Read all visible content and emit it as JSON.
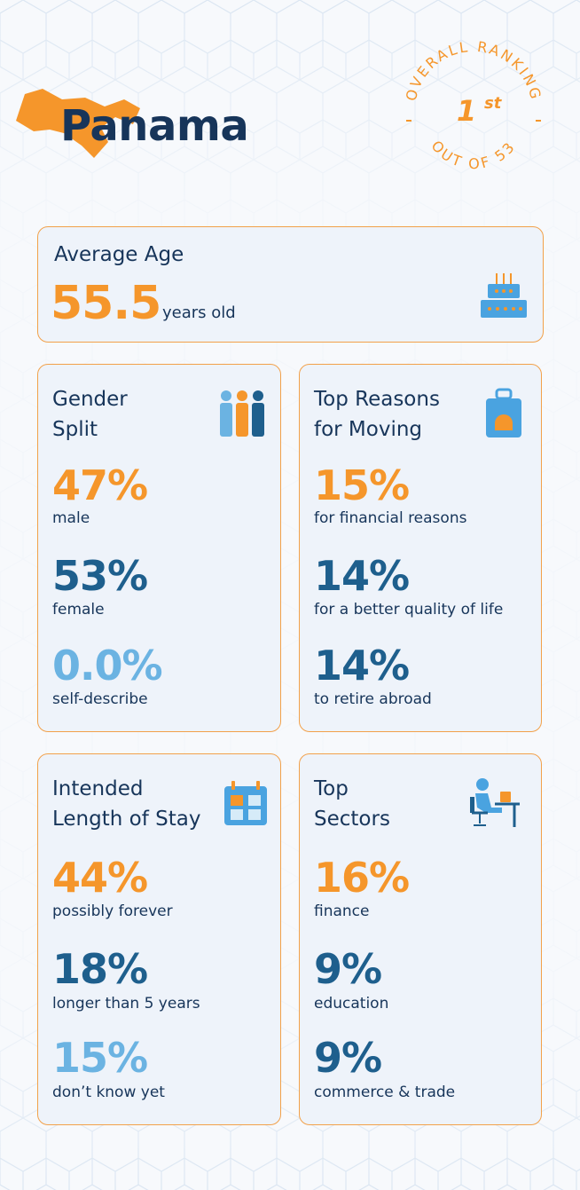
{
  "header": {
    "country": "Panama",
    "badge": {
      "ranking_label": "OVERALL RANKING",
      "rank": "1",
      "rank_suffix": "st",
      "out_of_label": "OUT OF 53"
    }
  },
  "average_age": {
    "title": "Average Age",
    "value": "55.5",
    "unit": "years old",
    "icon": "birthday-cake-icon"
  },
  "gender_split": {
    "title_line1": "Gender",
    "title_line2": "Split",
    "icon": "people-group-icon",
    "stats": [
      {
        "value": "47%",
        "label": "male"
      },
      {
        "value": "53%",
        "label": "female"
      },
      {
        "value": "0.0%",
        "label": "self-describe"
      }
    ]
  },
  "reasons": {
    "title_line1": "Top Reasons",
    "title_line2": "for Moving",
    "icon": "suitcase-icon",
    "stats": [
      {
        "value": "15%",
        "label": "for financial reasons"
      },
      {
        "value": "14%",
        "label": "for a better quality of life"
      },
      {
        "value": "14%",
        "label": "to retire abroad"
      }
    ]
  },
  "stay": {
    "title_line1": "Intended",
    "title_line2": "Length of Stay",
    "icon": "calendar-icon",
    "stats": [
      {
        "value": "44%",
        "label": "possibly forever"
      },
      {
        "value": "18%",
        "label": "longer than 5 years"
      },
      {
        "value": "15%",
        "label": "don’t know yet"
      }
    ]
  },
  "sectors": {
    "title_line1": "Top",
    "title_line2": "Sectors",
    "icon": "person-at-desk-icon",
    "stats": [
      {
        "value": "16%",
        "label": "finance"
      },
      {
        "value": "9%",
        "label": "education"
      },
      {
        "value": "9%",
        "label": "commerce & trade"
      }
    ]
  },
  "colors": {
    "orange": "#f5962b",
    "navy": "#1e5f8d",
    "light_blue": "#6bb3e2",
    "title": "#17355a",
    "card_border": "#f2a14a",
    "card_bg": "#eef3fa"
  }
}
